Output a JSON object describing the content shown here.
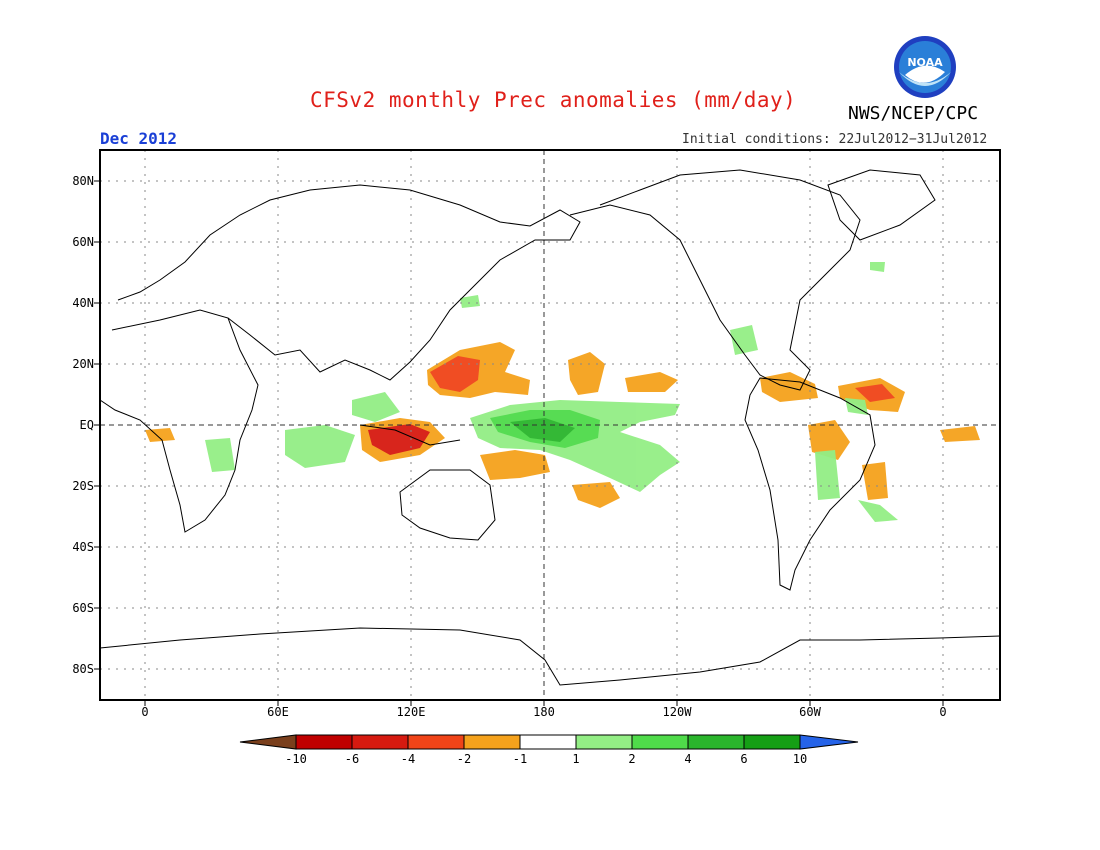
{
  "title": "CFSv2 monthly Prec anomalies (mm/day)",
  "agency": "NWS/NCEP/CPC",
  "logo_text": "NOAA",
  "month": "Dec 2012",
  "initial_conditions": "Initial conditions: 22Jul2012−31Jul2012",
  "map": {
    "lat_labels": [
      "80N",
      "60N",
      "40N",
      "20N",
      "EQ",
      "20S",
      "40S",
      "60S",
      "80S"
    ],
    "lon_labels": [
      "0",
      "60E",
      "120E",
      "180",
      "120W",
      "60W",
      "0"
    ]
  },
  "colorbar": {
    "labels": [
      "-10",
      "-6",
      "-4",
      "-2",
      "-1",
      "1",
      "2",
      "4",
      "6",
      "10"
    ],
    "colors": [
      "#7a3f1c",
      "#c00000",
      "#d61a10",
      "#f04418",
      "#f5a21c",
      "#ffffff",
      "#93ee85",
      "#4fdb4a",
      "#2ab52c",
      "#159f15",
      "#2563e8"
    ]
  }
}
